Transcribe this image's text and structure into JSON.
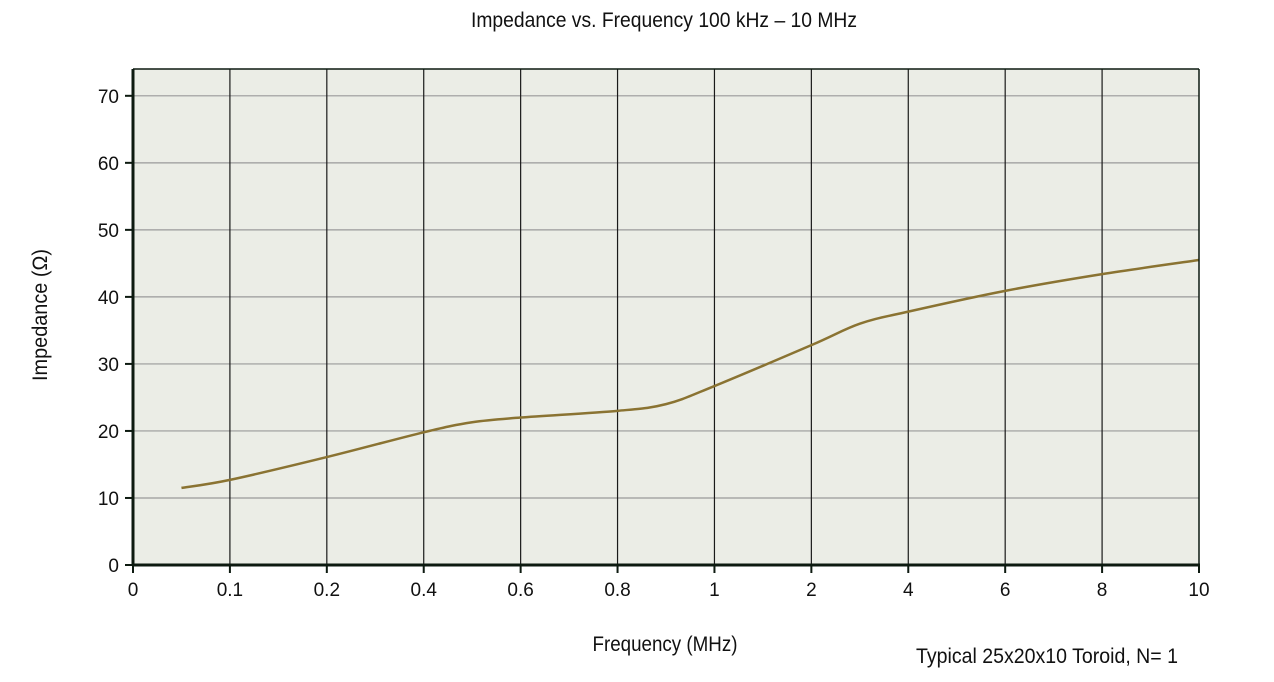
{
  "chart_data": {
    "type": "line",
    "title": "Impedance vs. Frequency  100 kHz – 10 MHz",
    "xlabel": "Frequency (MHz)",
    "ylabel": "Impedance (Ω)",
    "note": "Typical 25x20x10 Toroid, N= 1",
    "x_ticks": [
      0,
      0.1,
      0.2,
      0.4,
      0.6,
      0.8,
      1,
      2,
      4,
      6,
      8,
      10
    ],
    "x_tick_labels": [
      "0",
      "0.1",
      "0.2",
      "0.4",
      "0.6",
      "0.8",
      "1",
      "2",
      "4",
      "6",
      "8",
      "10"
    ],
    "y_ticks": [
      0,
      10,
      20,
      30,
      40,
      50,
      60,
      70
    ],
    "y_tick_labels": [
      "0",
      "10",
      "20",
      "30",
      "40",
      "50",
      "60",
      "70"
    ],
    "ylim": [
      0,
      74
    ],
    "grid": true,
    "series": [
      {
        "name": "Impedance",
        "color": "#8a7332",
        "x": [
          0.05,
          0.1,
          0.2,
          0.4,
          0.5,
          0.6,
          0.8,
          0.9,
          1,
          2,
          3,
          4,
          6,
          8,
          10
        ],
        "y": [
          11.5,
          12.7,
          16.1,
          19.8,
          21.3,
          22.0,
          23.0,
          24.0,
          26.7,
          32.8,
          36.0,
          37.8,
          40.9,
          43.4,
          45.5
        ]
      }
    ],
    "colors": {
      "plot_bg": "#ebede6",
      "axis": "#0d1a10",
      "vgrid": "#1a1a1a",
      "hgrid": "#9a9a9a"
    }
  }
}
